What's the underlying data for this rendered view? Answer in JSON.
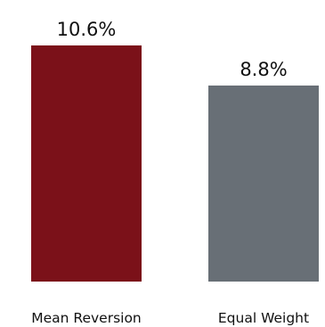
{
  "chart_data": {
    "type": "bar",
    "title": "",
    "xlabel": "",
    "ylabel": "",
    "categories": [
      "Mean Reversion",
      "Equal Weight"
    ],
    "values": [
      10.6,
      8.8
    ],
    "value_labels": [
      "10.6%",
      "8.8%"
    ],
    "unit": "%",
    "ylim": [
      0,
      10.6
    ],
    "colors": [
      "#7b1119",
      "#686f76"
    ],
    "grid": false,
    "legend": "none"
  }
}
